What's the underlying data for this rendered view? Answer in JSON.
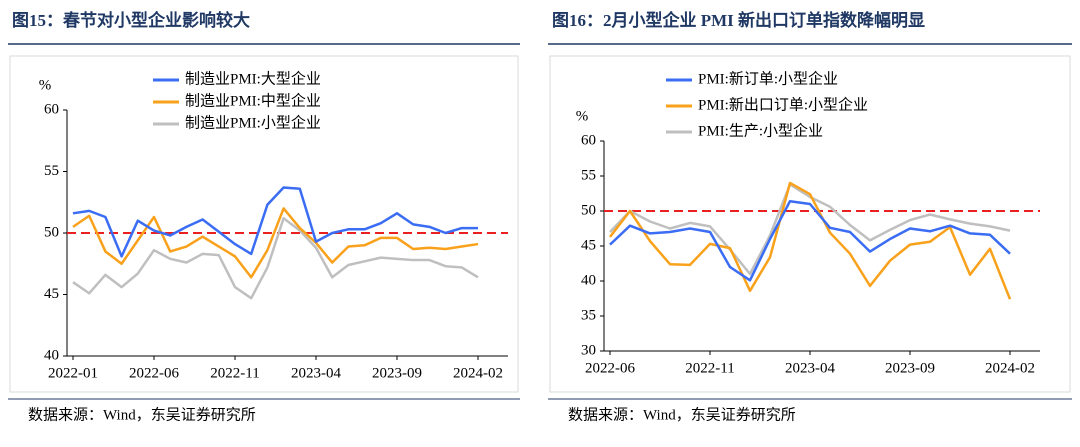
{
  "chart_data": [
    {
      "type": "line",
      "title": "图15：春节对小型企业影响较大",
      "y_label": "%",
      "source": "数据来源：Wind，东吴证券研究所",
      "categories": [
        "2022-01",
        null,
        null,
        null,
        null,
        "2022-06",
        null,
        null,
        null,
        null,
        "2022-11",
        null,
        null,
        null,
        null,
        "2023-04",
        null,
        null,
        null,
        null,
        "2023-09",
        null,
        null,
        null,
        null,
        "2024-02"
      ],
      "ylim": [
        40,
        60
      ],
      "yticks": [
        40,
        45,
        50,
        55,
        60
      ],
      "reference_line": 50,
      "reference_color": "#e8201f",
      "series": [
        {
          "name": "制造业PMI:大型企业",
          "color": "#3a6cf4",
          "values": [
            51.6,
            51.8,
            51.3,
            48.1,
            51.0,
            50.2,
            49.8,
            50.5,
            51.1,
            50.1,
            49.1,
            48.3,
            52.3,
            53.7,
            53.6,
            49.3,
            50.0,
            50.3,
            50.3,
            50.8,
            51.6,
            50.7,
            50.5,
            50.0,
            50.4,
            50.4
          ]
        },
        {
          "name": "制造业PMI:中型企业",
          "color": "#f9a11b",
          "values": [
            50.5,
            51.4,
            48.5,
            47.5,
            49.4,
            51.3,
            48.5,
            48.9,
            49.7,
            48.9,
            48.1,
            46.4,
            48.6,
            52.0,
            50.4,
            49.2,
            47.6,
            48.9,
            49.0,
            49.6,
            49.6,
            48.7,
            48.8,
            48.7,
            48.9,
            49.1
          ]
        },
        {
          "name": "制造业PMI:小型企业",
          "color": "#bfbfbf",
          "values": [
            46.0,
            45.1,
            46.6,
            45.6,
            46.7,
            48.6,
            47.9,
            47.6,
            48.3,
            48.2,
            45.6,
            44.7,
            47.2,
            51.2,
            50.2,
            48.8,
            46.4,
            47.4,
            47.7,
            48.0,
            47.9,
            47.8,
            47.8,
            47.3,
            47.2,
            46.4
          ]
        }
      ]
    },
    {
      "type": "line",
      "title": "图16：2月小型企业 PMI 新出口订单指数降幅明显",
      "y_label": "%",
      "source": "数据来源：Wind，东吴证券研究所",
      "categories": [
        "2022-06",
        null,
        null,
        null,
        null,
        "2022-11",
        null,
        null,
        null,
        null,
        "2023-04",
        null,
        null,
        null,
        null,
        "2023-09",
        null,
        null,
        null,
        null,
        "2024-02"
      ],
      "ylim": [
        30,
        60
      ],
      "yticks": [
        30,
        35,
        40,
        45,
        50,
        55,
        60
      ],
      "reference_line": 50,
      "reference_color": "#e8201f",
      "series": [
        {
          "name": "PMI:新订单:小型企业",
          "color": "#3a6cf4",
          "values": [
            45.2,
            47.9,
            46.8,
            47.0,
            47.5,
            47.0,
            42.0,
            40.1,
            46.0,
            51.4,
            51.0,
            47.6,
            47.0,
            44.2,
            46.0,
            47.5,
            47.1,
            47.9,
            46.8,
            46.6,
            43.9
          ]
        },
        {
          "name": "PMI:新出口订单:小型企业",
          "color": "#f9a11b",
          "values": [
            46.3,
            50.0,
            45.7,
            42.4,
            42.3,
            45.3,
            44.7,
            38.6,
            43.4,
            54.0,
            52.4,
            46.9,
            43.9,
            39.3,
            42.9,
            45.2,
            45.6,
            47.7,
            40.9,
            44.6,
            37.4
          ]
        },
        {
          "name": "PMI:生产:小型企业",
          "color": "#bfbfbf",
          "values": [
            47.0,
            50.0,
            48.5,
            47.5,
            48.3,
            47.8,
            44.5,
            41.0,
            46.5,
            53.8,
            52.0,
            50.6,
            48.0,
            45.8,
            47.3,
            48.7,
            49.5,
            48.8,
            48.2,
            47.8,
            47.2
          ]
        }
      ]
    }
  ]
}
